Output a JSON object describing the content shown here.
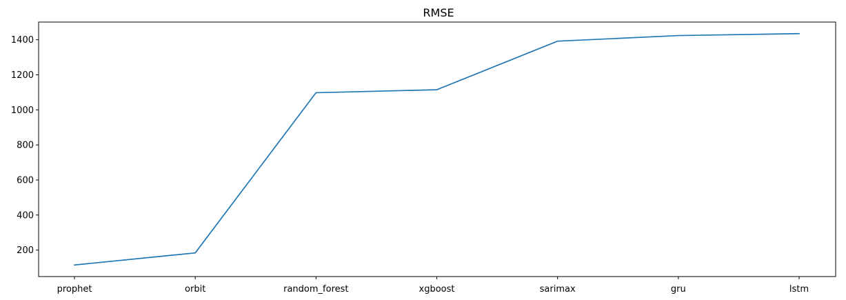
{
  "chart_data": {
    "type": "line",
    "title": "RMSE",
    "xlabel": "",
    "ylabel": "",
    "categories": [
      "prophet",
      "orbit",
      "random_forest",
      "xgboost",
      "sarimax",
      "gru",
      "lstm"
    ],
    "series": [
      {
        "values": [
          115,
          184,
          1098,
          1115,
          1392,
          1424,
          1435
        ],
        "color": "#1f77b4"
      }
    ],
    "yticks": [
      200,
      400,
      600,
      800,
      1000,
      1200,
      1400
    ],
    "ylim": [
      49,
      1501
    ],
    "grid": false,
    "legend": "none"
  }
}
